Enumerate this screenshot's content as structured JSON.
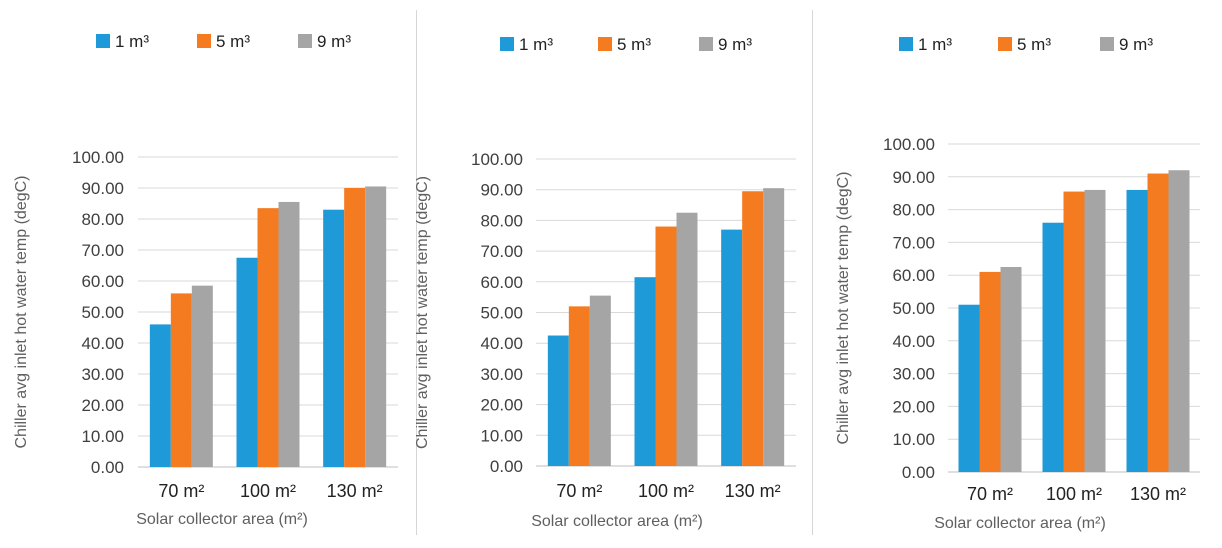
{
  "colors": {
    "series": [
      "#1f9ad8",
      "#f47b20",
      "#a5a5a5"
    ],
    "grid": "#d9d9d9",
    "text": "#404040",
    "xlabel": "#606060"
  },
  "legend_labels": [
    "1 m³",
    "5 m³",
    "9 m³"
  ],
  "chart_data": [
    {
      "type": "bar",
      "categories": [
        "70 m²",
        "100 m²",
        "130 m²"
      ],
      "ylabel": "Chiller avg inlet  hot water temp (degC)",
      "xlabel": "Solar collector area (m²)",
      "ylim": [
        0,
        100
      ],
      "yticks": [
        "0.00",
        "10.00",
        "20.00",
        "30.00",
        "40.00",
        "50.00",
        "60.00",
        "70.00",
        "80.00",
        "90.00",
        "100.00"
      ],
      "legend_position": "top",
      "grid": true,
      "series": [
        {
          "name": "1 m³",
          "values": [
            46,
            67.5,
            83
          ]
        },
        {
          "name": "5 m³",
          "values": [
            56,
            83.5,
            90
          ]
        },
        {
          "name": "9 m³",
          "values": [
            58.5,
            85.5,
            90.5
          ]
        }
      ]
    },
    {
      "type": "bar",
      "categories": [
        "70 m²",
        "100 m²",
        "130 m²"
      ],
      "ylabel": "Chiller avg inlet  hot water temp (degC)",
      "xlabel": "Solar collector area (m²)",
      "ylim": [
        0,
        100
      ],
      "yticks": [
        "0.00",
        "10.00",
        "20.00",
        "30.00",
        "40.00",
        "50.00",
        "60.00",
        "70.00",
        "80.00",
        "90.00",
        "100.00"
      ],
      "legend_position": "top",
      "grid": true,
      "series": [
        {
          "name": "1 m³",
          "values": [
            42.5,
            61.5,
            77
          ]
        },
        {
          "name": "5 m³",
          "values": [
            52,
            78,
            89.5
          ]
        },
        {
          "name": "9 m³",
          "values": [
            55.5,
            82.5,
            90.5
          ]
        }
      ]
    },
    {
      "type": "bar",
      "categories": [
        "70 m²",
        "100 m²",
        "130 m²"
      ],
      "ylabel": "Chiller avg inlet  hot water temp (degC)",
      "xlabel": "Solar collector area (m²)",
      "ylim": [
        0,
        100
      ],
      "yticks": [
        "0.00",
        "10.00",
        "20.00",
        "30.00",
        "40.00",
        "50.00",
        "60.00",
        "70.00",
        "80.00",
        "90.00",
        "100.00"
      ],
      "legend_position": "top",
      "grid": true,
      "series": [
        {
          "name": "1 m³",
          "values": [
            51,
            76,
            86
          ]
        },
        {
          "name": "5 m³",
          "values": [
            61,
            85.5,
            91
          ]
        },
        {
          "name": "9 m³",
          "values": [
            62.5,
            86,
            92
          ]
        }
      ]
    }
  ]
}
